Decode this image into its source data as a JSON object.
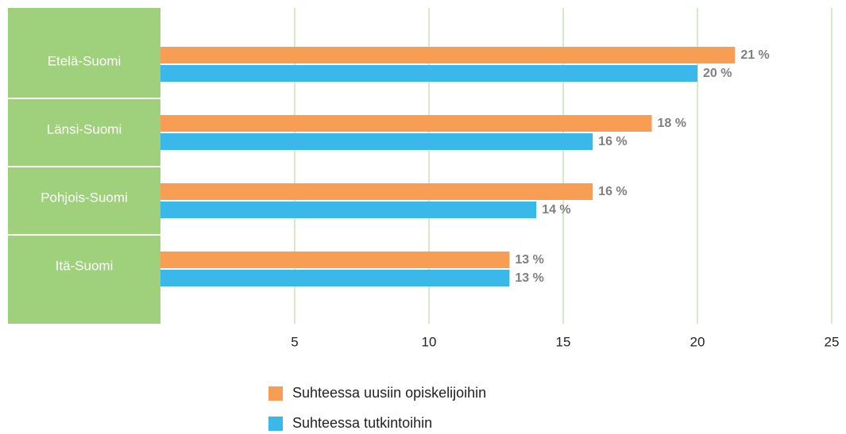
{
  "chart_data": {
    "type": "barh",
    "categories": [
      "Etelä-Suomi",
      "Länsi-Suomi",
      "Pohjois-Suomi",
      "Itä-Suomi"
    ],
    "series": [
      {
        "name": "Suhteessa uusiin opiskelijoihin",
        "color": "#f79e54",
        "values": [
          21.4,
          18.3,
          16.1,
          13
        ],
        "value_labels": [
          "21 %",
          "18 %",
          "16 %",
          "13 %"
        ]
      },
      {
        "name": "Suhteessa tutkintoihin",
        "color": "#3bb8ea",
        "values": [
          20,
          16.1,
          14,
          13
        ],
        "value_labels": [
          "20 %",
          "16 %",
          "14 %",
          "13 %"
        ]
      }
    ],
    "xlim": [
      0,
      25
    ],
    "xticks": [
      5,
      10,
      15,
      20,
      25
    ],
    "grid": true,
    "legend": "bottom"
  }
}
